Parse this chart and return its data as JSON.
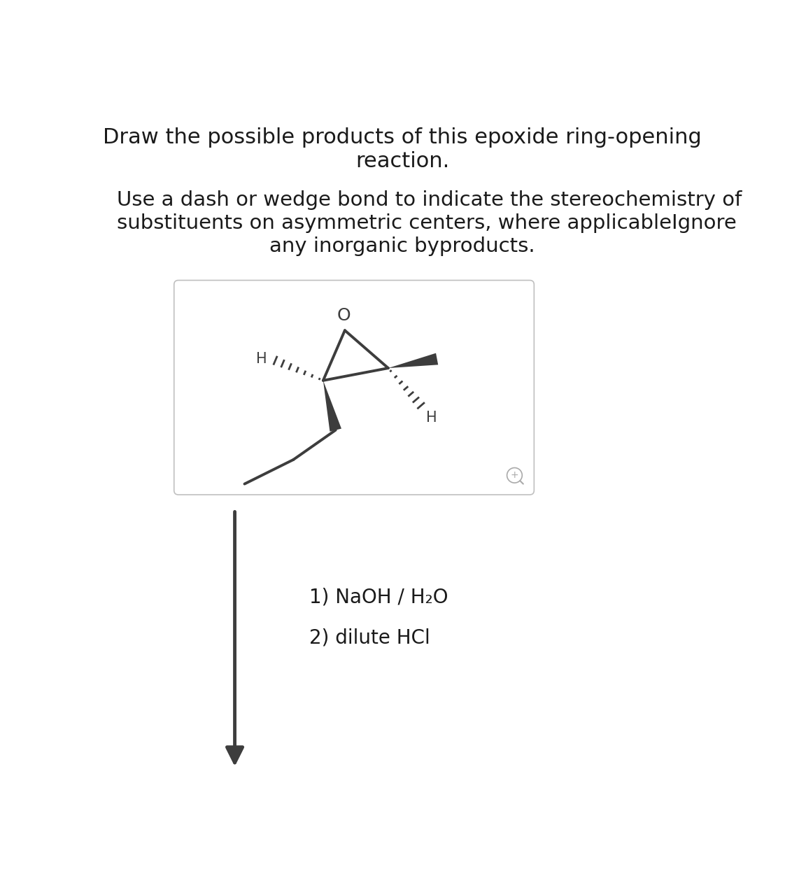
{
  "title_line1": "Draw the possible products of this epoxide ring-opening",
  "title_line2": "reaction.",
  "subtitle_line1": "Use a dash or wedge bond to indicate the stereochemistry of",
  "subtitle_line2": "substituents on asymmetric centers, where applicableIgnore",
  "subtitle_line3": "any inorganic byproducts.",
  "reaction_step1": "1) NaOH / H₂O",
  "reaction_step2": "2) dilute HCl",
  "bond_color": "#3d3d3d",
  "text_color": "#1a1a1a",
  "bg_color": "#ffffff",
  "title_fontsize": 22,
  "subtitle_fontsize": 21,
  "reaction_fontsize": 20
}
